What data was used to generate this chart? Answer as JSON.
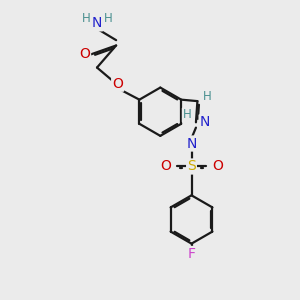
{
  "bg_color": "#ebebeb",
  "bond_color": "#1a1a1a",
  "bond_width": 1.6,
  "dbo": 0.06,
  "atom_colors": {
    "H": "#4a9090",
    "N": "#2222cc",
    "O": "#cc0000",
    "S": "#ccaa00",
    "F": "#cc44cc"
  },
  "fs": 10,
  "sfs": 8.5
}
